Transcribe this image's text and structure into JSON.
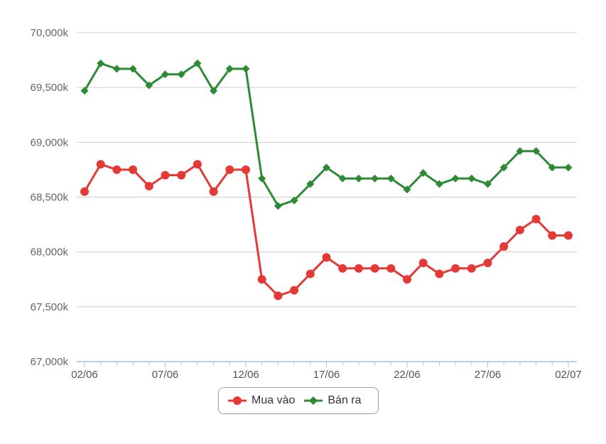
{
  "colors": {
    "buy": "#e53935",
    "sell": "#2e8b35",
    "grid": "#cccccc",
    "axis": "#9dc3e6"
  },
  "chart_data": {
    "type": "line",
    "title": "",
    "xlabel": "",
    "ylabel": "",
    "ylim": [
      67000,
      70000
    ],
    "yticks": [
      "70,000k",
      "69,500k",
      "69,000k",
      "68,500k",
      "68,000k",
      "67,500k",
      "67,000k"
    ],
    "ytick_values": [
      70000,
      69500,
      69000,
      68500,
      68000,
      67500,
      67000
    ],
    "xtick_labels": [
      "02/06",
      "07/06",
      "12/06",
      "17/06",
      "22/06",
      "27/06",
      "02/07"
    ],
    "xtick_index": [
      0,
      5,
      10,
      15,
      20,
      25,
      30
    ],
    "x": [
      "02/06",
      "03/06",
      "04/06",
      "05/06",
      "06/06",
      "07/06",
      "08/06",
      "09/06",
      "10/06",
      "11/06",
      "12/06",
      "13/06",
      "14/06",
      "15/06",
      "16/06",
      "17/06",
      "18/06",
      "19/06",
      "20/06",
      "21/06",
      "22/06",
      "23/06",
      "24/06",
      "25/06",
      "26/06",
      "27/06",
      "28/06",
      "29/06",
      "30/06",
      "01/07",
      "02/07"
    ],
    "grid": true,
    "legend_position": "bottom-center",
    "series": [
      {
        "name": "Mua vào",
        "color_key": "buy",
        "marker": "circle",
        "values": [
          68550,
          68800,
          68750,
          68750,
          68600,
          68700,
          68700,
          68800,
          68550,
          68750,
          68750,
          67750,
          67600,
          67650,
          67800,
          67950,
          67850,
          67850,
          67850,
          67850,
          67750,
          67900,
          67800,
          67850,
          67850,
          67900,
          68050,
          68200,
          68300,
          68150,
          68150
        ]
      },
      {
        "name": "Bán ra",
        "color_key": "sell",
        "marker": "diamond",
        "values": [
          69470,
          69720,
          69670,
          69670,
          69520,
          69620,
          69620,
          69720,
          69470,
          69670,
          69670,
          68670,
          68420,
          68470,
          68620,
          68770,
          68670,
          68670,
          68670,
          68670,
          68570,
          68720,
          68620,
          68670,
          68670,
          68620,
          68770,
          68920,
          68920,
          68770,
          68770
        ]
      }
    ]
  }
}
